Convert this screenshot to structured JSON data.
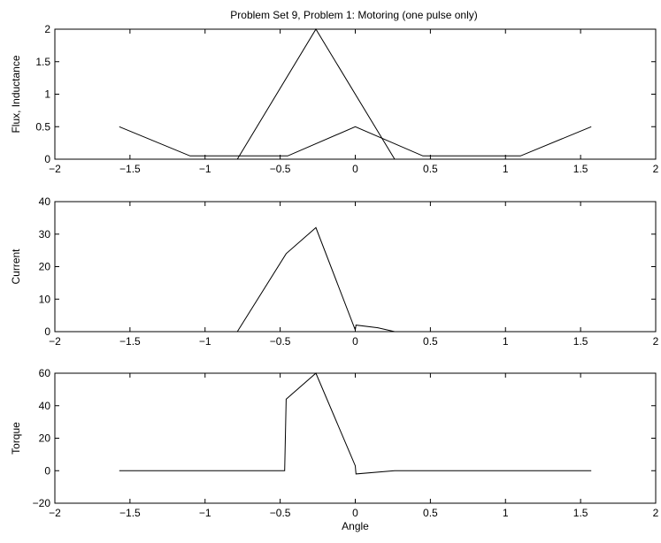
{
  "figure": {
    "title": "Problem Set 9, Problem 1: Motoring (one pulse only)",
    "background": "#ffffff",
    "line_color": "#000000"
  },
  "chart_data": [
    {
      "type": "line",
      "title": "Problem Set 9, Problem 1: Motoring (one pulse only)",
      "xlabel": "",
      "ylabel": "Flux, Inductance",
      "xlim": [
        -2,
        2
      ],
      "ylim": [
        0,
        2
      ],
      "xticks": [
        -2,
        -1.5,
        -1,
        -0.5,
        0,
        0.5,
        1,
        1.5,
        2
      ],
      "xtick_labels": [
        "−2",
        "−1.5",
        "−1",
        "−0.5",
        "0",
        "0.5",
        "1",
        "1.5",
        "2"
      ],
      "yticks": [
        0,
        0.5,
        1,
        1.5,
        2
      ],
      "ytick_labels": [
        "0",
        "0.5",
        "1",
        "1.5",
        "2"
      ],
      "grid": false,
      "series": [
        {
          "x": [
            -1.571,
            -1.1,
            -0.45,
            0,
            0.45,
            1.1,
            1.571
          ],
          "y": [
            0.5,
            0.05,
            0.05,
            0.5,
            0.05,
            0.05,
            0.5
          ]
        },
        {
          "x": [
            -0.785,
            -0.262,
            0.262
          ],
          "y": [
            0,
            2,
            0
          ]
        }
      ]
    },
    {
      "type": "line",
      "title": "",
      "xlabel": "",
      "ylabel": "Current",
      "xlim": [
        -2,
        2
      ],
      "ylim": [
        0,
        40
      ],
      "xticks": [
        -2,
        -1.5,
        -1,
        -0.5,
        0,
        0.5,
        1,
        1.5,
        2
      ],
      "xtick_labels": [
        "−2",
        "−1.5",
        "−1",
        "−0.5",
        "0",
        "0.5",
        "1",
        "1.5",
        "2"
      ],
      "yticks": [
        0,
        10,
        20,
        30,
        40
      ],
      "ytick_labels": [
        "0",
        "10",
        "20",
        "30",
        "40"
      ],
      "grid": false,
      "series": [
        {
          "x": [
            -0.785,
            -0.46,
            -0.262,
            0,
            0.005,
            0.15,
            0.262,
            1.571
          ],
          "y": [
            0,
            24,
            32,
            0.5,
            2,
            1.2,
            0,
            0
          ]
        }
      ]
    },
    {
      "type": "line",
      "title": "",
      "xlabel": "Angle",
      "ylabel": "Torque",
      "xlim": [
        -2,
        2
      ],
      "ylim": [
        -20,
        60
      ],
      "xticks": [
        -2,
        -1.5,
        -1,
        -0.5,
        0,
        0.5,
        1,
        1.5,
        2
      ],
      "xtick_labels": [
        "−2",
        "−1.5",
        "−1",
        "−0.5",
        "0",
        "0.5",
        "1",
        "1.5",
        "2"
      ],
      "yticks": [
        -20,
        0,
        20,
        40,
        60
      ],
      "ytick_labels": [
        "−20",
        "0",
        "20",
        "40",
        "60"
      ],
      "grid": false,
      "series": [
        {
          "x": [
            -1.571,
            -0.47,
            -0.46,
            -0.262,
            0,
            0.005,
            0.262,
            1.571
          ],
          "y": [
            0,
            0,
            44,
            60,
            3,
            -2,
            0,
            0
          ]
        }
      ]
    }
  ]
}
